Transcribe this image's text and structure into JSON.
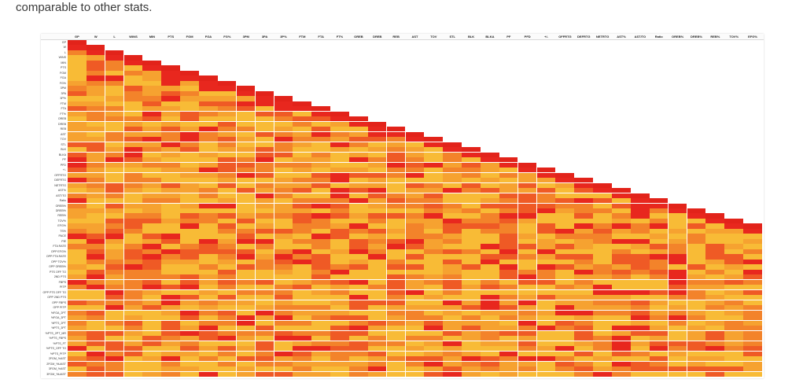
{
  "caption": "comparable to other stats.",
  "heatmap": {
    "columns": [
      "GP",
      "W",
      "L",
      "WINS",
      "MIN",
      "PTS",
      "FGM",
      "FGA",
      "FG%",
      "3PM",
      "3PA",
      "3P%",
      "FTM",
      "FTA",
      "FT%",
      "OREB",
      "DREB",
      "REB",
      "AST",
      "TOV",
      "STL",
      "BLK",
      "BLKA",
      "PF",
      "PFD",
      "+/-",
      "OFFRTG",
      "DEFRTG",
      "NETRTG",
      "AST%",
      "AST/TO",
      "Ratio",
      "OREB%",
      "DREB%",
      "REB%",
      "TOV%",
      "EFG%"
    ],
    "rows": [
      "GP",
      "W",
      "L",
      "WINS",
      "MIN",
      "PTS",
      "FGM",
      "FGA",
      "FG%",
      "3PM",
      "3PA",
      "3P%",
      "FTM",
      "FTA",
      "FT%",
      "OREB",
      "DREB",
      "REB",
      "AST",
      "TOV",
      "STL",
      "BLK",
      "BLKA",
      "PF",
      "PFD",
      "+/-",
      "OFFRTG",
      "DEFRTG",
      "NETRTG",
      "AST%",
      "AST/TO",
      "Ratio",
      "OREB%",
      "DREB%",
      "REB%",
      "TOV%",
      "EFG%",
      "TS%",
      "PACE",
      "PIE",
      "FTA RATE",
      "OPP EFG%",
      "OPP FTA RATE",
      "OPP TOV%",
      "OPP OREB%",
      "PTS OFF TO",
      "2ND PTS",
      "FBPS",
      "PITP",
      "OPP PTS OFF TO",
      "OPP 2ND PTS",
      "OPP FBPS",
      "OPP PITP",
      "%FGA_2PT",
      "%FGA_3PT",
      "%PTS_2PT",
      "%PTS_3PT",
      "%PTS_2PT_MR",
      "%PTS_FBPS",
      "%PTS_FT",
      "%PTS_OFF TO",
      "%PTS_PITP",
      "2FGM_%AST",
      "2FGM_%UAST",
      "3FGM_%AST",
      "3FGM_%UAST"
    ]
  }
}
